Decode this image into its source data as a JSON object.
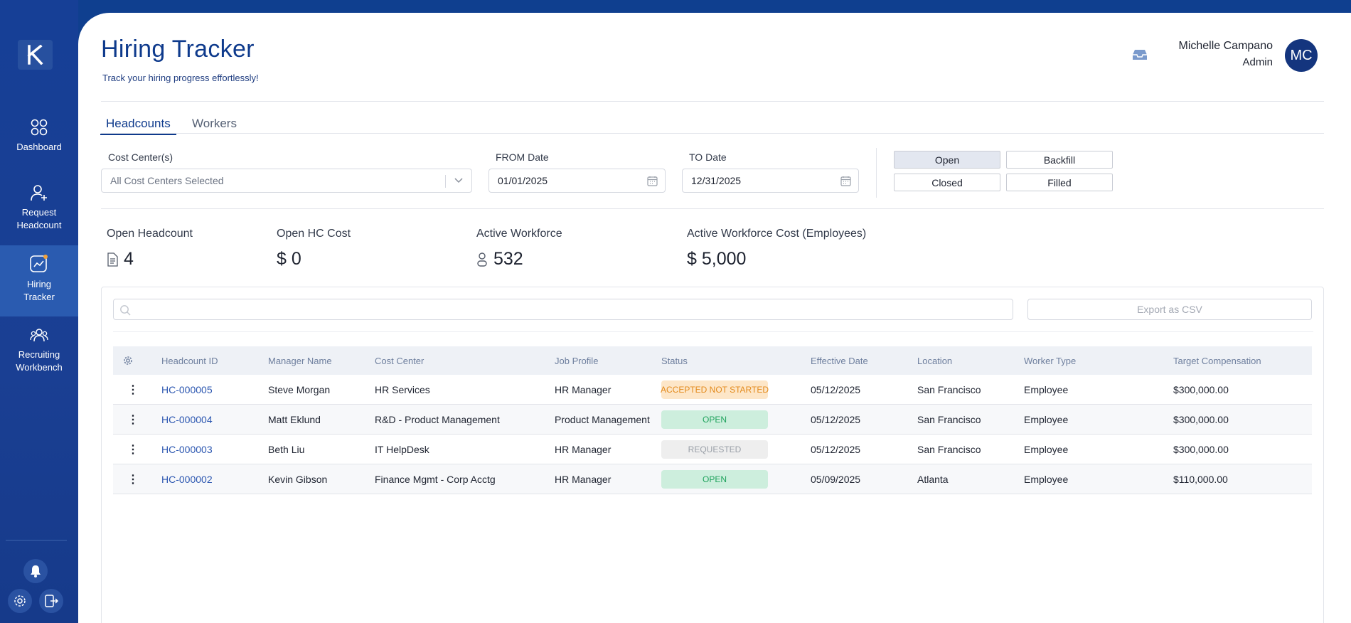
{
  "sidebar": {
    "logo_letter": "K",
    "items": [
      {
        "label": "Dashboard",
        "icon": "grid-icon"
      },
      {
        "label": "Request Headcount",
        "icon": "add-user-icon"
      },
      {
        "label": "Hiring Tracker",
        "icon": "chart-icon"
      },
      {
        "label": "Recruiting Workbench",
        "icon": "users-icon"
      }
    ]
  },
  "header": {
    "title": "Hiring Tracker",
    "subtitle": "Track your hiring progress effortlessly!",
    "user_name": "Michelle Campano",
    "user_role": "Admin",
    "avatar_initials": "MC"
  },
  "tabs": [
    {
      "label": "Headcounts"
    },
    {
      "label": "Workers"
    }
  ],
  "filters": {
    "cost_center_label": "Cost Center(s)",
    "cost_center_value": "All Cost Centers Selected",
    "from_label": "FROM Date",
    "from_value": "01/01/2025",
    "to_label": "TO Date",
    "to_value": "12/31/2025",
    "status_toggles": [
      "Open",
      "Backfill",
      "Closed",
      "Filled"
    ],
    "selected_toggle": "Open"
  },
  "kpis": [
    {
      "label": "Open Headcount",
      "value": "4",
      "icon": "document-icon"
    },
    {
      "label": "Open HC Cost",
      "value": "$ 0"
    },
    {
      "label": "Active Workforce",
      "value": "532",
      "icon": "person-icon"
    },
    {
      "label": "Active Workforce Cost (Employees)",
      "value": "$ 5,000"
    }
  ],
  "table": {
    "export_label": "Export as CSV",
    "columns": [
      "Headcount ID",
      "Manager Name",
      "Cost Center",
      "Job Profile",
      "Status",
      "Effective Date",
      "Location",
      "Worker Type",
      "Target Compensation"
    ],
    "rows": [
      {
        "id": "HC-000005",
        "manager": "Steve Morgan",
        "cost_center": "HR Services",
        "job_profile": "HR Manager",
        "status": "ACCEPTED NOT STARTED",
        "effective": "05/12/2025",
        "location": "San Francisco",
        "worker_type": "Employee",
        "comp": "$300,000.00"
      },
      {
        "id": "HC-000004",
        "manager": "Matt Eklund",
        "cost_center": "R&D - Product Management",
        "job_profile": "Product Management",
        "status": "OPEN",
        "effective": "05/12/2025",
        "location": "San Francisco",
        "worker_type": "Employee",
        "comp": "$300,000.00"
      },
      {
        "id": "HC-000003",
        "manager": "Beth Liu",
        "cost_center": "IT HelpDesk",
        "job_profile": "HR Manager",
        "status": "REQUESTED",
        "effective": "05/12/2025",
        "location": "San Francisco",
        "worker_type": "Employee",
        "comp": "$300,000.00"
      },
      {
        "id": "HC-000002",
        "manager": "Kevin Gibson",
        "cost_center": "Finance Mgmt - Corp Acctg",
        "job_profile": "HR Manager",
        "status": "OPEN",
        "effective": "05/09/2025",
        "location": "Atlanta",
        "worker_type": "Employee",
        "comp": "$110,000.00"
      }
    ]
  },
  "colors": {
    "brand": "#0e3a8c",
    "sidebar": "#163f96",
    "open_badge": "#cdeedd",
    "accepted_badge": "#fde6c8"
  }
}
